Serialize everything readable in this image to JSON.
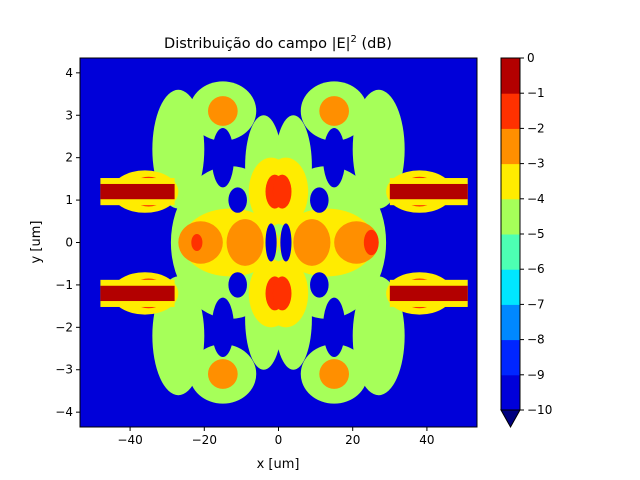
{
  "chart_data": {
    "type": "heatmap",
    "title": "Distribuição do campo |E|",
    "title_superscript": "2",
    "title_suffix": " (dB)",
    "xlabel": "x [um]",
    "ylabel": "y [um]",
    "xlim": [
      -53.5,
      53.5
    ],
    "ylim": [
      -4.35,
      4.35
    ],
    "xticks": [
      -40,
      -20,
      0,
      20,
      40
    ],
    "yticks": [
      -4,
      -3,
      -2,
      -1,
      0,
      1,
      2,
      3,
      4
    ],
    "colorbar": {
      "levels": [
        -10,
        -9,
        -8,
        -7,
        -6,
        -5,
        -4,
        -3,
        -2,
        -1,
        0
      ],
      "colors": [
        "#00008f",
        "#0000d9",
        "#0026ff",
        "#0088ff",
        "#00e6ff",
        "#4dffb3",
        "#a6ff59",
        "#ffec00",
        "#ff8f00",
        "#ff3100",
        "#b30000"
      ],
      "under_color": "#00007f",
      "extend": "min"
    },
    "background_level": -10,
    "waveguide_bars": [
      {
        "y": 1.2,
        "x_start": -48,
        "x_end": -28,
        "level": -0.5
      },
      {
        "y": -1.2,
        "x_start": -48,
        "x_end": -28,
        "level": -0.5
      },
      {
        "y": 1.2,
        "x_start": 30,
        "x_end": 51,
        "level": -0.5
      },
      {
        "y": -1.2,
        "x_start": 30,
        "x_end": 51,
        "level": -0.5
      }
    ],
    "field_regions": [
      {
        "x": -27,
        "y": 2.2,
        "rx": 7,
        "ry": 1.4,
        "level": -4.5
      },
      {
        "x": -27,
        "y": -2.2,
        "rx": 7,
        "ry": 1.4,
        "level": -4.5
      },
      {
        "x": 27,
        "y": 2.2,
        "rx": 7,
        "ry": 1.4,
        "level": -4.5
      },
      {
        "x": 27,
        "y": -2.2,
        "rx": 7,
        "ry": 1.4,
        "level": -4.5
      },
      {
        "x": -15,
        "y": 3.1,
        "rx": 9,
        "ry": 0.7,
        "level": -4.5
      },
      {
        "x": -15,
        "y": -3.1,
        "rx": 9,
        "ry": 0.7,
        "level": -4.5
      },
      {
        "x": 15,
        "y": 3.1,
        "rx": 9,
        "ry": 0.7,
        "level": -4.5
      },
      {
        "x": 15,
        "y": -3.1,
        "rx": 9,
        "ry": 0.7,
        "level": -4.5
      },
      {
        "x": -13,
        "y": 0,
        "rx": 16,
        "ry": 1.8,
        "level": -4.5
      },
      {
        "x": 13,
        "y": 0,
        "rx": 16,
        "ry": 1.8,
        "level": -4.5
      },
      {
        "x": -4,
        "y": 1.8,
        "rx": 5,
        "ry": 1.2,
        "level": -4.5
      },
      {
        "x": -4,
        "y": -1.8,
        "rx": 5,
        "ry": 1.2,
        "level": -4.5
      },
      {
        "x": 4,
        "y": 1.8,
        "rx": 5,
        "ry": 1.2,
        "level": -4.5
      },
      {
        "x": 4,
        "y": -1.8,
        "rx": 5,
        "ry": 1.2,
        "level": -4.5
      },
      {
        "x": -36,
        "y": 1.2,
        "rx": 9,
        "ry": 0.5,
        "level": -3.5
      },
      {
        "x": -36,
        "y": -1.2,
        "rx": 9,
        "ry": 0.5,
        "level": -3.5
      },
      {
        "x": 38,
        "y": 1.2,
        "rx": 9,
        "ry": 0.5,
        "level": -3.5
      },
      {
        "x": 38,
        "y": -1.2,
        "rx": 9,
        "ry": 0.5,
        "level": -3.5
      },
      {
        "x": -13,
        "y": 0,
        "rx": 13,
        "ry": 0.8,
        "level": -3.5
      },
      {
        "x": 13,
        "y": 0,
        "rx": 13,
        "ry": 0.8,
        "level": -3.5
      },
      {
        "x": -2,
        "y": 1.2,
        "rx": 6,
        "ry": 0.8,
        "level": -3.5
      },
      {
        "x": -2,
        "y": -1.2,
        "rx": 6,
        "ry": 0.8,
        "level": -3.5
      },
      {
        "x": 2,
        "y": 1.2,
        "rx": 6,
        "ry": 0.8,
        "level": -3.5
      },
      {
        "x": 2,
        "y": -1.2,
        "rx": 6,
        "ry": 0.8,
        "level": -3.5
      },
      {
        "x": -15,
        "y": 3.1,
        "rx": 4,
        "ry": 0.35,
        "level": -2.5
      },
      {
        "x": -15,
        "y": -3.1,
        "rx": 4,
        "ry": 0.35,
        "level": -2.5
      },
      {
        "x": 15,
        "y": 3.1,
        "rx": 4,
        "ry": 0.35,
        "level": -2.5
      },
      {
        "x": 15,
        "y": -3.1,
        "rx": 4,
        "ry": 0.35,
        "level": -2.5
      },
      {
        "x": -21,
        "y": 0,
        "rx": 6,
        "ry": 0.5,
        "level": -2.5
      },
      {
        "x": -9,
        "y": 0,
        "rx": 5,
        "ry": 0.55,
        "level": -2.5
      },
      {
        "x": 21,
        "y": 0,
        "rx": 6,
        "ry": 0.5,
        "level": -2.5
      },
      {
        "x": 9,
        "y": 0,
        "rx": 5,
        "ry": 0.55,
        "level": -2.5
      },
      {
        "x": -35,
        "y": 1.2,
        "rx": 5,
        "ry": 0.35,
        "level": -1.5
      },
      {
        "x": -35,
        "y": -1.2,
        "rx": 5,
        "ry": 0.35,
        "level": -1.5
      },
      {
        "x": 38,
        "y": 1.2,
        "rx": 5,
        "ry": 0.35,
        "level": -1.5
      },
      {
        "x": 38,
        "y": -1.2,
        "rx": 5,
        "ry": 0.35,
        "level": -1.5
      },
      {
        "x": -1,
        "y": 1.2,
        "rx": 2.5,
        "ry": 0.4,
        "level": -1.5
      },
      {
        "x": -1,
        "y": -1.2,
        "rx": 2.5,
        "ry": 0.4,
        "level": -1.5
      },
      {
        "x": 1,
        "y": 1.2,
        "rx": 2.5,
        "ry": 0.4,
        "level": -1.5
      },
      {
        "x": 1,
        "y": -1.2,
        "rx": 2.5,
        "ry": 0.4,
        "level": -1.5
      },
      {
        "x": 25,
        "y": 0,
        "rx": 2,
        "ry": 0.3,
        "level": -1.5
      },
      {
        "x": -22,
        "y": 0,
        "rx": 1.5,
        "ry": 0.2,
        "level": -1.5
      }
    ],
    "dark_gaps": [
      {
        "x": -15,
        "y": 2.0,
        "rx": 3,
        "ry": 0.7
      },
      {
        "x": -15,
        "y": -2.0,
        "rx": 3,
        "ry": 0.7
      },
      {
        "x": 15,
        "y": 2.0,
        "rx": 3,
        "ry": 0.7
      },
      {
        "x": 15,
        "y": -2.0,
        "rx": 3,
        "ry": 0.7
      },
      {
        "x": -11,
        "y": 1.0,
        "rx": 2.5,
        "ry": 0.3
      },
      {
        "x": -11,
        "y": -1.0,
        "rx": 2.5,
        "ry": 0.3
      },
      {
        "x": 11,
        "y": 1.0,
        "rx": 2.5,
        "ry": 0.3
      },
      {
        "x": 11,
        "y": -1.0,
        "rx": 2.5,
        "ry": 0.3
      },
      {
        "x": -2,
        "y": 0,
        "rx": 1.5,
        "ry": 0.45
      },
      {
        "x": 2,
        "y": 0,
        "rx": 1.5,
        "ry": 0.45
      }
    ]
  }
}
